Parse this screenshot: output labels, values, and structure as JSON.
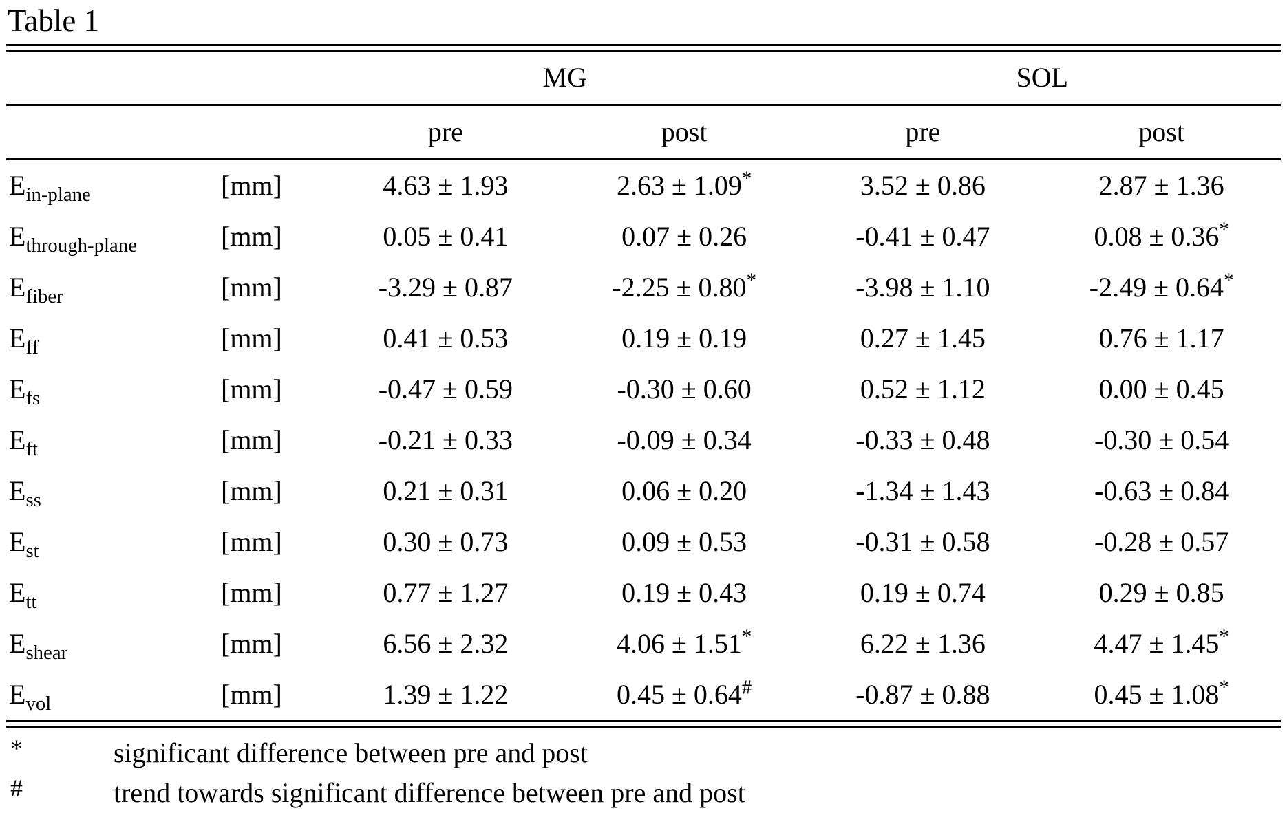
{
  "title": "Table 1",
  "header": {
    "mg": "MG",
    "sol": "SOL",
    "pre": "pre",
    "post": "post"
  },
  "rows": [
    {
      "label_main": "E",
      "label_sub": "in-plane",
      "unit": "[mm]",
      "mg_pre": {
        "text": "4.63 ± 1.93",
        "sup": ""
      },
      "mg_post": {
        "text": "2.63 ± 1.09",
        "sup": "*"
      },
      "sol_pre": {
        "text": "3.52 ± 0.86",
        "sup": ""
      },
      "sol_post": {
        "text": "2.87 ± 1.36",
        "sup": ""
      }
    },
    {
      "label_main": "E",
      "label_sub": "through-plane",
      "unit": "[mm]",
      "mg_pre": {
        "text": "0.05 ± 0.41",
        "sup": ""
      },
      "mg_post": {
        "text": "0.07 ± 0.26",
        "sup": ""
      },
      "sol_pre": {
        "text": "-0.41 ± 0.47",
        "sup": ""
      },
      "sol_post": {
        "text": "0.08 ± 0.36",
        "sup": "*"
      }
    },
    {
      "label_main": "E",
      "label_sub": "fiber",
      "unit": "[mm]",
      "mg_pre": {
        "text": "-3.29 ± 0.87",
        "sup": ""
      },
      "mg_post": {
        "text": "-2.25 ± 0.80",
        "sup": "*"
      },
      "sol_pre": {
        "text": "-3.98 ± 1.10",
        "sup": ""
      },
      "sol_post": {
        "text": "-2.49 ± 0.64",
        "sup": "*"
      }
    },
    {
      "label_main": "E",
      "label_sub": "ff",
      "unit": "[mm]",
      "mg_pre": {
        "text": "0.41 ± 0.53",
        "sup": ""
      },
      "mg_post": {
        "text": "0.19 ± 0.19",
        "sup": ""
      },
      "sol_pre": {
        "text": "0.27 ± 1.45",
        "sup": ""
      },
      "sol_post": {
        "text": "0.76 ± 1.17",
        "sup": ""
      }
    },
    {
      "label_main": "E",
      "label_sub": "fs",
      "unit": "[mm]",
      "mg_pre": {
        "text": "-0.47 ± 0.59",
        "sup": ""
      },
      "mg_post": {
        "text": "-0.30 ± 0.60",
        "sup": ""
      },
      "sol_pre": {
        "text": "0.52 ± 1.12",
        "sup": ""
      },
      "sol_post": {
        "text": "0.00 ± 0.45",
        "sup": ""
      }
    },
    {
      "label_main": "E",
      "label_sub": "ft",
      "unit": "[mm]",
      "mg_pre": {
        "text": "-0.21 ± 0.33",
        "sup": ""
      },
      "mg_post": {
        "text": "-0.09 ± 0.34",
        "sup": ""
      },
      "sol_pre": {
        "text": "-0.33 ± 0.48",
        "sup": ""
      },
      "sol_post": {
        "text": "-0.30 ± 0.54",
        "sup": ""
      }
    },
    {
      "label_main": "E",
      "label_sub": "ss",
      "unit": "[mm]",
      "mg_pre": {
        "text": "0.21 ± 0.31",
        "sup": ""
      },
      "mg_post": {
        "text": "0.06 ± 0.20",
        "sup": ""
      },
      "sol_pre": {
        "text": "-1.34 ± 1.43",
        "sup": ""
      },
      "sol_post": {
        "text": "-0.63 ± 0.84",
        "sup": ""
      }
    },
    {
      "label_main": "E",
      "label_sub": "st",
      "unit": "[mm]",
      "mg_pre": {
        "text": "0.30 ± 0.73",
        "sup": ""
      },
      "mg_post": {
        "text": "0.09 ± 0.53",
        "sup": ""
      },
      "sol_pre": {
        "text": "-0.31 ± 0.58",
        "sup": ""
      },
      "sol_post": {
        "text": "-0.28 ± 0.57",
        "sup": ""
      }
    },
    {
      "label_main": "E",
      "label_sub": "tt",
      "unit": "[mm]",
      "mg_pre": {
        "text": "0.77 ± 1.27",
        "sup": ""
      },
      "mg_post": {
        "text": "0.19 ± 0.43",
        "sup": ""
      },
      "sol_pre": {
        "text": "0.19 ± 0.74",
        "sup": ""
      },
      "sol_post": {
        "text": "0.29 ± 0.85",
        "sup": ""
      }
    },
    {
      "label_main": "E",
      "label_sub": "shear",
      "unit": "[mm]",
      "mg_pre": {
        "text": "6.56 ± 2.32",
        "sup": ""
      },
      "mg_post": {
        "text": "4.06 ± 1.51",
        "sup": "*"
      },
      "sol_pre": {
        "text": "6.22 ± 1.36",
        "sup": ""
      },
      "sol_post": {
        "text": "4.47 ± 1.45",
        "sup": "*"
      }
    },
    {
      "label_main": "E",
      "label_sub": "vol",
      "unit": "[mm]",
      "mg_pre": {
        "text": "1.39 ± 1.22",
        "sup": ""
      },
      "mg_post": {
        "text": "0.45 ± 0.64",
        "sup": "#"
      },
      "sol_pre": {
        "text": "-0.87 ± 0.88",
        "sup": ""
      },
      "sol_post": {
        "text": "0.45 ± 1.08",
        "sup": "*"
      }
    }
  ],
  "footnotes": [
    {
      "symbol": "*",
      "text": "significant difference between pre and post"
    },
    {
      "symbol": "#",
      "text": "trend towards significant difference between pre and post"
    }
  ]
}
